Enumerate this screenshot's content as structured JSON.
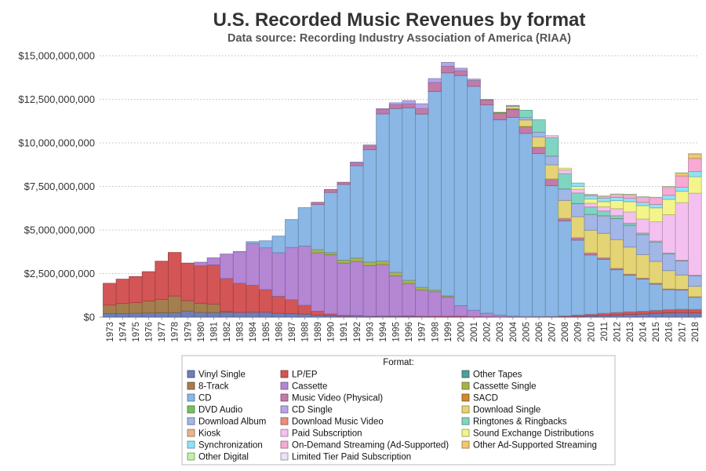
{
  "chart_data": {
    "type": "bar",
    "stacked": true,
    "title": "U.S. Recorded Music Revenues by format",
    "subtitle": "Data source: Recording Industry Association of America (RIAA)",
    "xlabel": "",
    "ylabel": "",
    "ylim": [
      0,
      15000000000
    ],
    "y_ticks": [
      "$0",
      "$2,500,000,000",
      "$5,000,000,000",
      "$7,500,000,000",
      "$10,000,000,000",
      "$12,500,000,000",
      "$15,000,000,000"
    ],
    "grid": "horizontal-dotted",
    "legend_placement": "bottom",
    "legend_title": "Format:",
    "categories": [
      "1973",
      "1974",
      "1975",
      "1976",
      "1977",
      "1978",
      "1979",
      "1980",
      "1981",
      "1982",
      "1983",
      "1984",
      "1985",
      "1986",
      "1987",
      "1988",
      "1989",
      "1990",
      "1991",
      "1992",
      "1993",
      "1994",
      "1995",
      "1996",
      "1997",
      "1998",
      "1999",
      "2000",
      "2001",
      "2002",
      "2003",
      "2004",
      "2005",
      "2006",
      "2007",
      "2008",
      "2009",
      "2010",
      "2011",
      "2012",
      "2013",
      "2014",
      "2015",
      "2016",
      "2017",
      "2018"
    ],
    "series": [
      {
        "name": "Vinyl Single",
        "color": "#6f7fb8",
        "values": [
          200,
          200,
          220,
          240,
          250,
          260,
          350,
          270,
          260,
          280,
          270,
          280,
          280,
          220,
          200,
          180,
          120,
          95,
          60,
          70,
          50,
          50,
          50,
          45,
          30,
          25,
          28,
          28,
          10,
          8,
          6,
          6,
          10,
          15,
          20,
          30,
          40,
          70,
          90,
          120,
          150,
          180,
          220,
          250,
          260,
          240
        ]
      },
      {
        "name": "8-Track",
        "color": "#a57e4f",
        "values": [
          490,
          580,
          610,
          690,
          760,
          950,
          600,
          530,
          490,
          40,
          0,
          0,
          0,
          0,
          0,
          0,
          0,
          0,
          0,
          0,
          0,
          0,
          0,
          0,
          0,
          0,
          0,
          0,
          0,
          0,
          0,
          0,
          0,
          0,
          0,
          0,
          0,
          0,
          0,
          0,
          0,
          0,
          0,
          0,
          0,
          0
        ]
      },
      {
        "name": "Other Tapes",
        "color": "#4f9e9c",
        "values": [
          0,
          0,
          0,
          0,
          0,
          0,
          0,
          0,
          0,
          0,
          0,
          0,
          0,
          0,
          0,
          0,
          0,
          0,
          0,
          0,
          0,
          0,
          0,
          0,
          0,
          0,
          0,
          0,
          0,
          0,
          0,
          0,
          0,
          0,
          0,
          0,
          0,
          0,
          0,
          0,
          0,
          0,
          0,
          0,
          0,
          0
        ]
      },
      {
        "name": "LP/EP",
        "color": "#d45555",
        "values": [
          1250,
          1400,
          1500,
          1680,
          2200,
          2500,
          2150,
          2150,
          2250,
          1900,
          1680,
          1550,
          1300,
          980,
          800,
          500,
          220,
          90,
          40,
          20,
          10,
          15,
          20,
          30,
          25,
          30,
          30,
          30,
          25,
          20,
          15,
          15,
          15,
          20,
          20,
          40,
          80,
          100,
          130,
          150,
          160,
          160,
          170,
          180,
          190,
          200
        ]
      },
      {
        "name": "Cassette",
        "color": "#b486d4",
        "values": [
          0,
          0,
          0,
          0,
          0,
          0,
          0,
          200,
          400,
          1400,
          1800,
          2400,
          2400,
          2500,
          3000,
          3400,
          3350,
          3400,
          3000,
          3100,
          2900,
          2950,
          2300,
          1850,
          1500,
          1400,
          1100,
          600,
          360,
          200,
          100,
          40,
          15,
          0,
          0,
          0,
          0,
          0,
          0,
          0,
          0,
          0,
          0,
          0,
          0,
          0
        ]
      },
      {
        "name": "Cassette Single",
        "color": "#a7b44a",
        "values": [
          0,
          0,
          0,
          0,
          0,
          0,
          0,
          0,
          0,
          0,
          0,
          0,
          0,
          0,
          0,
          0,
          180,
          120,
          170,
          200,
          200,
          200,
          200,
          190,
          150,
          95,
          60,
          5,
          0,
          0,
          0,
          0,
          0,
          0,
          0,
          0,
          0,
          0,
          0,
          0,
          0,
          0,
          0,
          0,
          0,
          0
        ]
      },
      {
        "name": "CD",
        "color": "#8ab7e5",
        "values": [
          0,
          0,
          0,
          0,
          0,
          0,
          0,
          0,
          0,
          0,
          20,
          100,
          400,
          950,
          1600,
          2200,
          2600,
          3450,
          4350,
          5300,
          6450,
          8450,
          9400,
          9900,
          9950,
          11400,
          12800,
          13200,
          12850,
          11950,
          11200,
          11400,
          10500,
          9350,
          7500,
          5450,
          4300,
          3400,
          3100,
          2450,
          2100,
          1850,
          1500,
          1150,
          1100,
          700
        ]
      },
      {
        "name": "Music Video (Physical)",
        "color": "#c27aa8",
        "values": [
          0,
          0,
          0,
          0,
          0,
          0,
          0,
          0,
          0,
          0,
          0,
          0,
          0,
          0,
          0,
          0,
          120,
          170,
          120,
          160,
          220,
          250,
          220,
          230,
          320,
          520,
          380,
          280,
          330,
          280,
          400,
          460,
          380,
          360,
          390,
          150,
          140,
          120,
          90,
          80,
          60,
          50,
          60,
          40,
          50,
          30
        ]
      },
      {
        "name": "SACD",
        "color": "#d0892c",
        "values": [
          0,
          0,
          0,
          0,
          0,
          0,
          0,
          0,
          0,
          0,
          0,
          0,
          0,
          0,
          0,
          0,
          0,
          0,
          0,
          0,
          0,
          0,
          0,
          0,
          0,
          0,
          0,
          0,
          0,
          5,
          20,
          30,
          15,
          5,
          0,
          0,
          0,
          0,
          0,
          0,
          0,
          0,
          0,
          0,
          0,
          0
        ]
      },
      {
        "name": "DVD Audio",
        "color": "#79c064",
        "values": [
          0,
          0,
          0,
          0,
          0,
          0,
          0,
          0,
          0,
          0,
          0,
          0,
          0,
          0,
          0,
          0,
          0,
          0,
          0,
          0,
          0,
          0,
          0,
          0,
          0,
          0,
          0,
          0,
          5,
          10,
          10,
          10,
          10,
          5,
          0,
          0,
          0,
          0,
          0,
          0,
          0,
          0,
          0,
          0,
          0,
          0
        ]
      },
      {
        "name": "CD Single",
        "color": "#b6a5ea",
        "values": [
          0,
          0,
          0,
          0,
          0,
          0,
          0,
          0,
          0,
          0,
          0,
          0,
          0,
          0,
          0,
          0,
          0,
          0,
          0,
          50,
          50,
          50,
          110,
          180,
          270,
          220,
          220,
          140,
          80,
          20,
          0,
          0,
          0,
          0,
          0,
          0,
          0,
          0,
          0,
          0,
          0,
          0,
          0,
          0,
          0,
          0
        ]
      },
      {
        "name": "Download Single",
        "color": "#e4d475",
        "values": [
          0,
          0,
          0,
          0,
          0,
          0,
          0,
          0,
          0,
          0,
          0,
          0,
          0,
          0,
          0,
          0,
          0,
          0,
          0,
          0,
          0,
          0,
          0,
          0,
          0,
          0,
          0,
          0,
          0,
          0,
          0,
          140,
          370,
          580,
          810,
          1030,
          1200,
          1300,
          1400,
          1650,
          1550,
          1350,
          1250,
          1050,
          820,
          600
        ]
      },
      {
        "name": "Download Album",
        "color": "#a3b6e8",
        "values": [
          0,
          0,
          0,
          0,
          0,
          0,
          0,
          0,
          0,
          0,
          0,
          0,
          0,
          0,
          0,
          0,
          0,
          0,
          0,
          0,
          0,
          0,
          0,
          0,
          0,
          0,
          0,
          0,
          0,
          0,
          0,
          50,
          140,
          280,
          500,
          650,
          750,
          900,
          1000,
          1200,
          1250,
          1150,
          1100,
          950,
          800,
          600
        ]
      },
      {
        "name": "Download Music Video",
        "color": "#ea8e7c",
        "values": [
          0,
          0,
          0,
          0,
          0,
          0,
          0,
          0,
          0,
          0,
          0,
          0,
          0,
          0,
          0,
          0,
          0,
          0,
          0,
          0,
          0,
          0,
          0,
          0,
          0,
          0,
          0,
          0,
          0,
          0,
          0,
          0,
          0,
          0,
          5,
          10,
          10,
          10,
          10,
          10,
          10,
          5,
          5,
          5,
          5,
          5
        ]
      },
      {
        "name": "Ringtones & Ringbacks",
        "color": "#80d5c2",
        "values": [
          0,
          0,
          0,
          0,
          0,
          0,
          0,
          0,
          0,
          0,
          0,
          0,
          0,
          0,
          0,
          0,
          0,
          0,
          0,
          0,
          0,
          0,
          0,
          0,
          0,
          0,
          0,
          0,
          0,
          0,
          0,
          0,
          420,
          710,
          1050,
          870,
          600,
          420,
          270,
          160,
          110,
          80,
          60,
          50,
          40,
          30
        ]
      },
      {
        "name": "Kiosk",
        "color": "#e7b58d",
        "values": [
          0,
          0,
          0,
          0,
          0,
          0,
          0,
          0,
          0,
          0,
          0,
          0,
          0,
          0,
          0,
          0,
          0,
          0,
          0,
          0,
          0,
          0,
          0,
          0,
          0,
          0,
          0,
          0,
          0,
          0,
          0,
          0,
          0,
          0,
          0,
          0,
          5,
          5,
          5,
          5,
          5,
          5,
          5,
          5,
          5,
          5
        ]
      },
      {
        "name": "Paid Subscription",
        "color": "#f3c0f0",
        "values": [
          0,
          0,
          0,
          0,
          0,
          0,
          0,
          0,
          0,
          0,
          0,
          0,
          0,
          0,
          0,
          0,
          0,
          0,
          0,
          0,
          0,
          0,
          0,
          0,
          0,
          0,
          0,
          0,
          0,
          0,
          0,
          0,
          0,
          0,
          120,
          220,
          210,
          210,
          240,
          400,
          640,
          800,
          1100,
          2200,
          3300,
          4700
        ]
      },
      {
        "name": "Sound Exchange Distributions",
        "color": "#f3f48a",
        "values": [
          0,
          0,
          0,
          0,
          0,
          0,
          0,
          0,
          0,
          0,
          0,
          0,
          0,
          0,
          0,
          0,
          0,
          0,
          0,
          0,
          0,
          0,
          0,
          0,
          0,
          0,
          0,
          0,
          0,
          0,
          0,
          0,
          0,
          0,
          0,
          100,
          160,
          250,
          290,
          460,
          590,
          770,
          800,
          880,
          650,
          950
        ]
      },
      {
        "name": "Synchronization",
        "color": "#8ee4f4",
        "values": [
          0,
          0,
          0,
          0,
          0,
          0,
          0,
          0,
          0,
          0,
          0,
          0,
          0,
          0,
          0,
          0,
          0,
          0,
          0,
          0,
          0,
          0,
          0,
          0,
          0,
          0,
          0,
          0,
          0,
          0,
          0,
          0,
          0,
          0,
          0,
          0,
          200,
          180,
          200,
          190,
          190,
          190,
          200,
          230,
          230,
          290
        ]
      },
      {
        "name": "On-Demand Streaming (Ad-Supported)",
        "color": "#f6aad5",
        "values": [
          0,
          0,
          0,
          0,
          0,
          0,
          0,
          0,
          0,
          0,
          0,
          0,
          0,
          0,
          0,
          0,
          0,
          0,
          0,
          0,
          0,
          0,
          0,
          0,
          0,
          0,
          0,
          0,
          0,
          0,
          0,
          0,
          0,
          0,
          0,
          0,
          0,
          70,
          110,
          170,
          220,
          300,
          390,
          490,
          650,
          760
        ]
      },
      {
        "name": "Other Ad-Supported Streaming",
        "color": "#f4c66e",
        "values": [
          0,
          0,
          0,
          0,
          0,
          0,
          0,
          0,
          0,
          0,
          0,
          0,
          0,
          0,
          0,
          0,
          0,
          0,
          0,
          0,
          0,
          0,
          0,
          0,
          0,
          0,
          0,
          0,
          0,
          0,
          0,
          0,
          0,
          0,
          0,
          0,
          0,
          0,
          0,
          0,
          0,
          0,
          0,
          0,
          160,
          250
        ]
      },
      {
        "name": "Other Digital",
        "color": "#bef0a8",
        "values": [
          0,
          0,
          0,
          0,
          0,
          0,
          0,
          0,
          0,
          0,
          0,
          0,
          0,
          0,
          0,
          0,
          0,
          0,
          0,
          0,
          0,
          0,
          0,
          0,
          0,
          0,
          0,
          0,
          0,
          0,
          0,
          0,
          0,
          0,
          0,
          0,
          0,
          10,
          20,
          20,
          20,
          20,
          20,
          20,
          20,
          20
        ]
      },
      {
        "name": "Limited Tier Paid Subscription",
        "color": "#ece2f6",
        "values": [
          0,
          0,
          0,
          0,
          0,
          0,
          0,
          0,
          0,
          0,
          0,
          0,
          0,
          0,
          0,
          0,
          0,
          0,
          0,
          0,
          0,
          0,
          0,
          0,
          0,
          0,
          0,
          0,
          0,
          0,
          0,
          0,
          0,
          0,
          0,
          0,
          0,
          0,
          0,
          0,
          0,
          0,
          0,
          0,
          0,
          0
        ]
      }
    ],
    "values_unit": "millions of USD"
  },
  "legend_columns": [
    [
      "Vinyl Single",
      "8-Track",
      "CD",
      "DVD Audio",
      "Download Album",
      "Kiosk",
      "Synchronization",
      "Other Digital"
    ],
    [
      "LP/EP",
      "Cassette",
      "Music Video (Physical)",
      "CD Single",
      "Download Music Video",
      "Paid Subscription",
      "On-Demand Streaming (Ad-Supported)",
      "Limited Tier Paid Subscription"
    ],
    [
      "Other Tapes",
      "Cassette Single",
      "SACD",
      "Download Single",
      "Ringtones & Ringbacks",
      "Sound Exchange Distributions",
      "Other Ad-Supported Streaming"
    ]
  ]
}
